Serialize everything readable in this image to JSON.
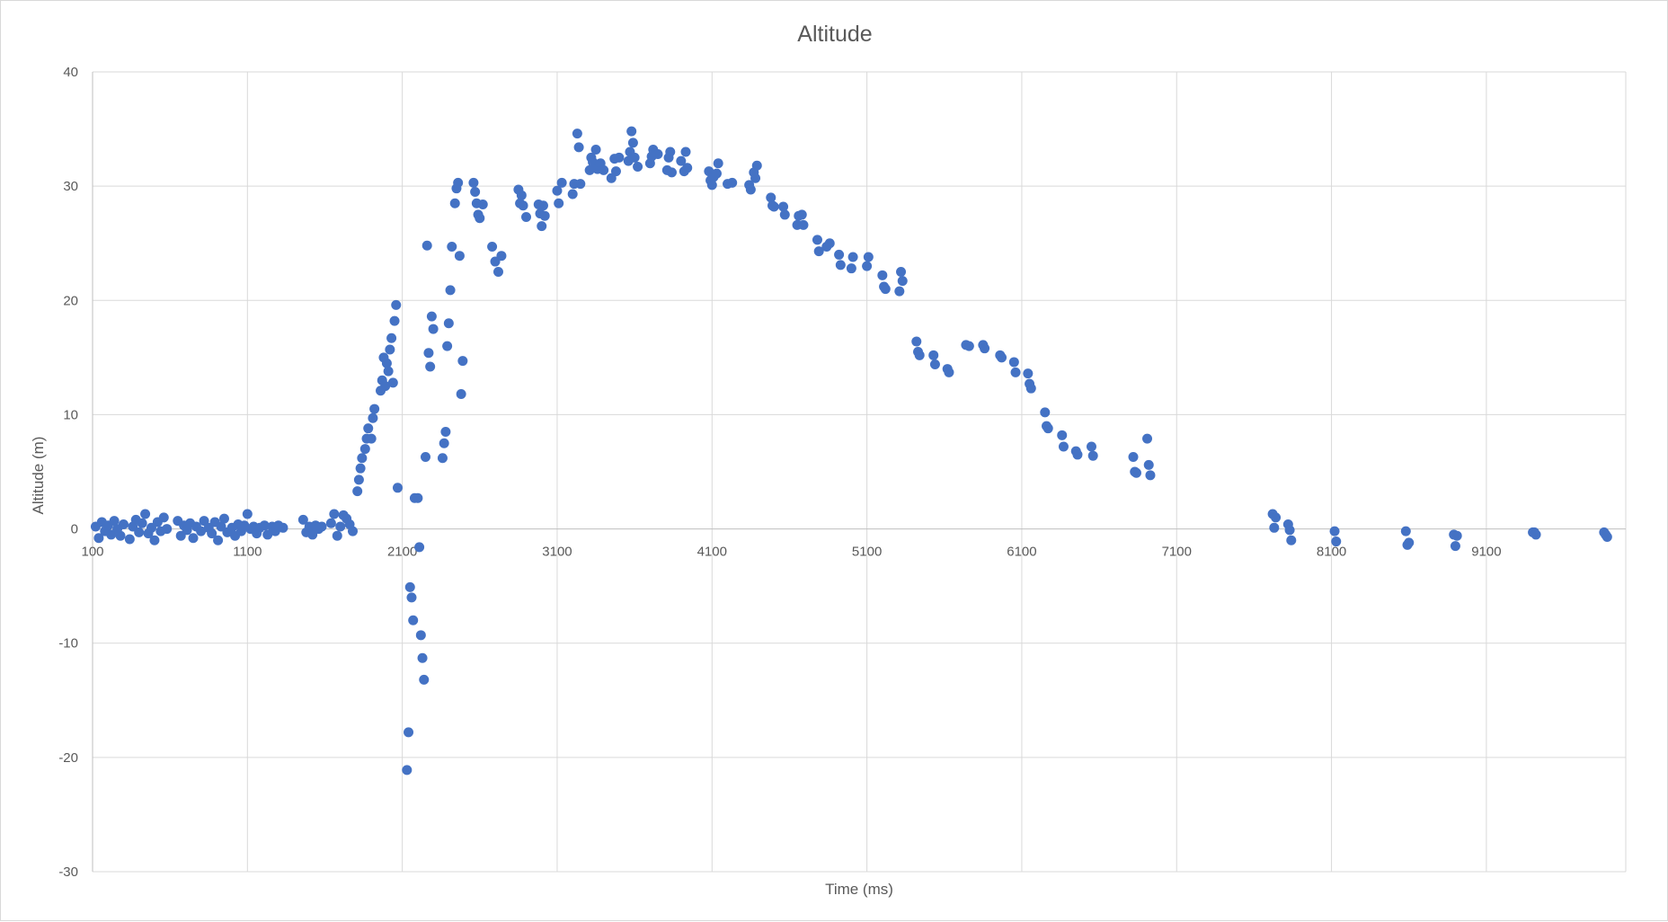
{
  "chart_data": {
    "type": "scatter",
    "title": "Altitude",
    "xlabel": "Time (ms)",
    "ylabel": "Altitude (m)",
    "xlim": [
      100,
      10000
    ],
    "ylim": [
      -30,
      40
    ],
    "x_ticks": [
      100,
      1100,
      2100,
      3100,
      4100,
      5100,
      6100,
      7100,
      8100,
      9100
    ],
    "y_ticks": [
      40,
      30,
      20,
      10,
      0,
      -10,
      -20,
      -30
    ],
    "grid": true,
    "legend": "none",
    "marker_color": "#4472c4",
    "series": [
      {
        "points": [
          [
            120,
            0.2
          ],
          [
            140,
            -0.8
          ],
          [
            160,
            0.6
          ],
          [
            180,
            -0.2
          ],
          [
            200,
            0.3
          ],
          [
            220,
            -0.5
          ],
          [
            240,
            0.7
          ],
          [
            260,
            0
          ],
          [
            280,
            -0.6
          ],
          [
            300,
            0.4
          ],
          [
            340,
            -0.9
          ],
          [
            360,
            0.2
          ],
          [
            380,
            0.8
          ],
          [
            400,
            -0.3
          ],
          [
            420,
            0.5
          ],
          [
            440,
            1.3
          ],
          [
            460,
            -0.4
          ],
          [
            480,
            0.1
          ],
          [
            500,
            -1
          ],
          [
            520,
            0.6
          ],
          [
            540,
            -0.2
          ],
          [
            560,
            1
          ],
          [
            580,
            0
          ],
          [
            650,
            0.7
          ],
          [
            670,
            -0.6
          ],
          [
            690,
            0.3
          ],
          [
            710,
            -0.1
          ],
          [
            730,
            0.5
          ],
          [
            750,
            -0.8
          ],
          [
            770,
            0.2
          ],
          [
            800,
            -0.2
          ],
          [
            820,
            0.7
          ],
          [
            850,
            0.1
          ],
          [
            870,
            -0.4
          ],
          [
            890,
            0.6
          ],
          [
            910,
            -1
          ],
          [
            930,
            0.2
          ],
          [
            950,
            0.9
          ],
          [
            970,
            -0.3
          ],
          [
            1000,
            0.1
          ],
          [
            1020,
            -0.6
          ],
          [
            1040,
            0.4
          ],
          [
            1060,
            -0.2
          ],
          [
            1080,
            0.3
          ],
          [
            1100,
            1.3
          ],
          [
            1120,
            0
          ],
          [
            1140,
            0.2
          ],
          [
            1160,
            -0.4
          ],
          [
            1180,
            0.1
          ],
          [
            1210,
            0.3
          ],
          [
            1230,
            -0.5
          ],
          [
            1260,
            0.2
          ],
          [
            1280,
            -0.2
          ],
          [
            1300,
            0.3
          ],
          [
            1330,
            0.1
          ],
          [
            1460,
            0.8
          ],
          [
            1480,
            -0.3
          ],
          [
            1500,
            0.2
          ],
          [
            1520,
            -0.5
          ],
          [
            1540,
            0.3
          ],
          [
            1560,
            0
          ],
          [
            1580,
            0.2
          ],
          [
            1640,
            0.5
          ],
          [
            1660,
            1.3
          ],
          [
            1680,
            -0.6
          ],
          [
            1700,
            0.2
          ],
          [
            1720,
            1.2
          ],
          [
            1740,
            0.9
          ],
          [
            1760,
            0.4
          ],
          [
            1780,
            -0.2
          ],
          [
            1810,
            3.3
          ],
          [
            1820,
            4.3
          ],
          [
            1830,
            5.3
          ],
          [
            1840,
            6.2
          ],
          [
            1860,
            7
          ],
          [
            1870,
            7.9
          ],
          [
            1880,
            8.8
          ],
          [
            1900,
            7.9
          ],
          [
            1910,
            9.7
          ],
          [
            1920,
            10.5
          ],
          [
            1960,
            12.1
          ],
          [
            1970,
            13
          ],
          [
            1980,
            15
          ],
          [
            1990,
            12.5
          ],
          [
            2000,
            14.5
          ],
          [
            2010,
            13.8
          ],
          [
            2020,
            15.7
          ],
          [
            2030,
            16.7
          ],
          [
            2040,
            12.8
          ],
          [
            2050,
            18.2
          ],
          [
            2060,
            19.6
          ],
          [
            2070,
            3.6
          ],
          [
            2130,
            -21.1
          ],
          [
            2140,
            -17.8
          ],
          [
            2150,
            -5.1
          ],
          [
            2160,
            -6
          ],
          [
            2170,
            -8
          ],
          [
            2180,
            2.7
          ],
          [
            2200,
            2.7
          ],
          [
            2210,
            -1.6
          ],
          [
            2220,
            -9.3
          ],
          [
            2230,
            -11.3
          ],
          [
            2240,
            -13.2
          ],
          [
            2250,
            6.3
          ],
          [
            2260,
            24.8
          ],
          [
            2270,
            15.4
          ],
          [
            2280,
            14.2
          ],
          [
            2290,
            18.6
          ],
          [
            2300,
            17.5
          ],
          [
            2360,
            6.2
          ],
          [
            2370,
            7.5
          ],
          [
            2380,
            8.5
          ],
          [
            2390,
            16
          ],
          [
            2400,
            18
          ],
          [
            2410,
            20.9
          ],
          [
            2420,
            24.7
          ],
          [
            2440,
            28.5
          ],
          [
            2450,
            29.8
          ],
          [
            2460,
            30.3
          ],
          [
            2470,
            23.9
          ],
          [
            2480,
            11.8
          ],
          [
            2490,
            14.7
          ],
          [
            2560,
            30.3
          ],
          [
            2570,
            29.5
          ],
          [
            2580,
            28.5
          ],
          [
            2590,
            27.5
          ],
          [
            2600,
            27.2
          ],
          [
            2620,
            28.4
          ],
          [
            2680,
            24.7
          ],
          [
            2700,
            23.4
          ],
          [
            2720,
            22.5
          ],
          [
            2740,
            23.9
          ],
          [
            2850,
            29.7
          ],
          [
            2860,
            28.5
          ],
          [
            2870,
            29.2
          ],
          [
            2880,
            28.3
          ],
          [
            2900,
            27.3
          ],
          [
            2980,
            28.4
          ],
          [
            2990,
            27.6
          ],
          [
            3000,
            26.5
          ],
          [
            3010,
            28.3
          ],
          [
            3020,
            27.4
          ],
          [
            3100,
            29.6
          ],
          [
            3110,
            28.5
          ],
          [
            3130,
            30.3
          ],
          [
            3200,
            29.3
          ],
          [
            3210,
            30.2
          ],
          [
            3230,
            34.6
          ],
          [
            3240,
            33.4
          ],
          [
            3250,
            30.2
          ],
          [
            3310,
            31.4
          ],
          [
            3320,
            32.5
          ],
          [
            3330,
            32.1
          ],
          [
            3340,
            31.7
          ],
          [
            3350,
            33.2
          ],
          [
            3360,
            31.5
          ],
          [
            3380,
            32
          ],
          [
            3400,
            31.4
          ],
          [
            3450,
            30.7
          ],
          [
            3470,
            32.4
          ],
          [
            3480,
            31.3
          ],
          [
            3500,
            32.5
          ],
          [
            3560,
            32.2
          ],
          [
            3570,
            33
          ],
          [
            3580,
            34.8
          ],
          [
            3590,
            33.8
          ],
          [
            3600,
            32.5
          ],
          [
            3620,
            31.7
          ],
          [
            3700,
            32
          ],
          [
            3710,
            32.6
          ],
          [
            3720,
            33.2
          ],
          [
            3750,
            32.8
          ],
          [
            3810,
            31.4
          ],
          [
            3820,
            32.5
          ],
          [
            3830,
            33
          ],
          [
            3840,
            31.2
          ],
          [
            3900,
            32.2
          ],
          [
            3920,
            31.3
          ],
          [
            3930,
            33
          ],
          [
            3940,
            31.6
          ],
          [
            4080,
            31.3
          ],
          [
            4090,
            30.5
          ],
          [
            4100,
            30.1
          ],
          [
            4110,
            30.8
          ],
          [
            4130,
            31.1
          ],
          [
            4140,
            32
          ],
          [
            4200,
            30.2
          ],
          [
            4230,
            30.3
          ],
          [
            4340,
            30.1
          ],
          [
            4350,
            29.7
          ],
          [
            4370,
            31.2
          ],
          [
            4380,
            30.7
          ],
          [
            4390,
            31.8
          ],
          [
            4480,
            29
          ],
          [
            4490,
            28.3
          ],
          [
            4500,
            28.2
          ],
          [
            4560,
            28.2
          ],
          [
            4570,
            27.5
          ],
          [
            4650,
            26.6
          ],
          [
            4660,
            27.4
          ],
          [
            4680,
            27.5
          ],
          [
            4690,
            26.6
          ],
          [
            4780,
            25.3
          ],
          [
            4790,
            24.3
          ],
          [
            4840,
            24.7
          ],
          [
            4860,
            25
          ],
          [
            4920,
            24
          ],
          [
            4930,
            23.1
          ],
          [
            5000,
            22.8
          ],
          [
            5010,
            23.8
          ],
          [
            5100,
            23
          ],
          [
            5110,
            23.8
          ],
          [
            5200,
            22.2
          ],
          [
            5210,
            21.2
          ],
          [
            5220,
            21
          ],
          [
            5310,
            20.8
          ],
          [
            5320,
            22.5
          ],
          [
            5330,
            21.7
          ],
          [
            5420,
            16.4
          ],
          [
            5430,
            15.5
          ],
          [
            5440,
            15.2
          ],
          [
            5530,
            15.2
          ],
          [
            5540,
            14.4
          ],
          [
            5620,
            14
          ],
          [
            5630,
            13.7
          ],
          [
            5740,
            16.1
          ],
          [
            5760,
            16
          ],
          [
            5850,
            16.1
          ],
          [
            5860,
            15.8
          ],
          [
            5960,
            15.2
          ],
          [
            5970,
            15
          ],
          [
            6050,
            14.6
          ],
          [
            6060,
            13.7
          ],
          [
            6140,
            13.6
          ],
          [
            6150,
            12.7
          ],
          [
            6160,
            12.3
          ],
          [
            6250,
            10.2
          ],
          [
            6260,
            9
          ],
          [
            6270,
            8.8
          ],
          [
            6360,
            8.2
          ],
          [
            6370,
            7.2
          ],
          [
            6450,
            6.8
          ],
          [
            6460,
            6.5
          ],
          [
            6550,
            7.2
          ],
          [
            6560,
            6.4
          ],
          [
            6820,
            6.3
          ],
          [
            6830,
            5
          ],
          [
            6840,
            4.9
          ],
          [
            6910,
            7.9
          ],
          [
            6920,
            5.6
          ],
          [
            6930,
            4.7
          ],
          [
            7720,
            1.3
          ],
          [
            7730,
            0.1
          ],
          [
            7740,
            1
          ],
          [
            7820,
            0.4
          ],
          [
            7830,
            -0.1
          ],
          [
            7840,
            -1
          ],
          [
            8120,
            -0.2
          ],
          [
            8130,
            -1.1
          ],
          [
            8580,
            -0.2
          ],
          [
            8590,
            -1.4
          ],
          [
            8600,
            -1.2
          ],
          [
            8890,
            -0.5
          ],
          [
            8900,
            -1.5
          ],
          [
            8910,
            -0.6
          ],
          [
            9400,
            -0.3
          ],
          [
            9410,
            -0.3
          ],
          [
            9420,
            -0.5
          ],
          [
            9860,
            -0.3
          ],
          [
            9870,
            -0.5
          ],
          [
            9880,
            -0.7
          ]
        ]
      }
    ]
  }
}
